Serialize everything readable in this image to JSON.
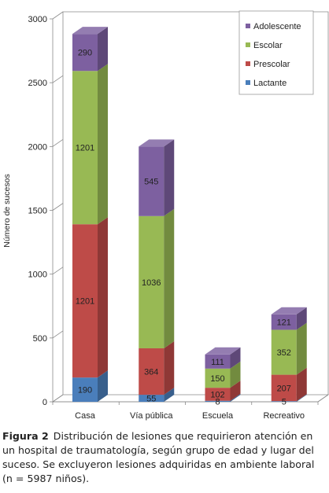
{
  "chart_data": {
    "type": "bar",
    "stacked": true,
    "three_d": true,
    "categories": [
      "Casa",
      "Vía pública",
      "Escuela",
      "Recreativo"
    ],
    "series": [
      {
        "name": "Lactante",
        "values": [
          190,
          55,
          8,
          5
        ],
        "color": "#4a7ebb"
      },
      {
        "name": "Prescolar",
        "values": [
          1201,
          364,
          102,
          207
        ],
        "color": "#be4b48"
      },
      {
        "name": "Escolar",
        "values": [
          1201,
          1036,
          150,
          352
        ],
        "color": "#98b954"
      },
      {
        "name": "Adolescente",
        "values": [
          290,
          545,
          111,
          121
        ],
        "color": "#7d60a0"
      }
    ],
    "ylabel": "Número de sucesos",
    "xlabel": "",
    "ylim": [
      0,
      3000
    ],
    "yticks": [
      0,
      500,
      1000,
      1500,
      2000,
      2500,
      3000
    ],
    "grid": false,
    "legend_position": "top-right"
  },
  "caption": {
    "label": "Figura 2",
    "text": "Distribución de lesiones que requirieron atención en un hospital de traumatología, según grupo de edad y lugar del suceso. Se excluyeron lesiones adquiridas en ambiente laboral (n = 5987 niños)."
  }
}
